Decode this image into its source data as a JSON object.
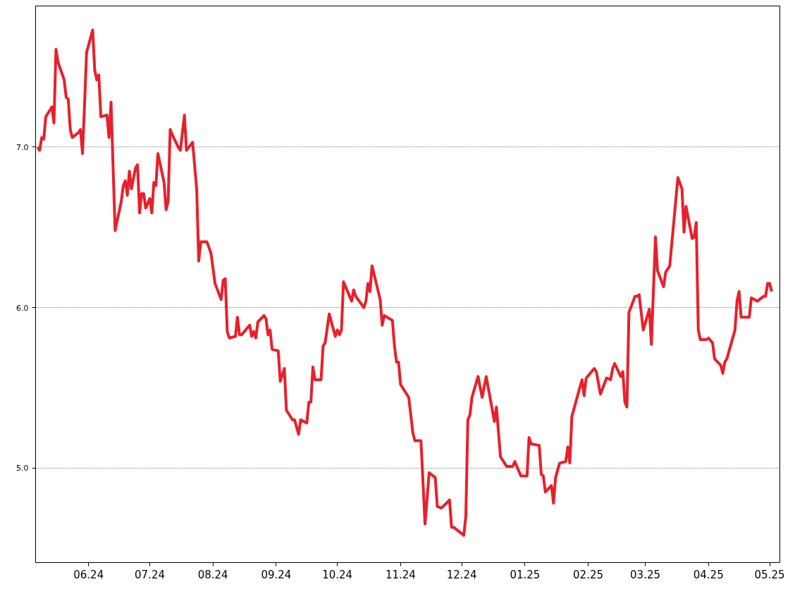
{
  "chart_data": {
    "type": "line",
    "x": [
      "2024-05-07",
      "2024-05-08",
      "2024-05-09",
      "2024-05-10",
      "2024-05-11",
      "2024-05-13",
      "2024-05-14",
      "2024-05-15",
      "2024-05-16",
      "2024-05-17",
      "2024-05-20",
      "2024-05-21",
      "2024-05-22",
      "2024-05-23",
      "2024-05-24",
      "2024-05-27",
      "2024-05-28",
      "2024-05-29",
      "2024-05-30",
      "2024-05-31",
      "2024-06-03",
      "2024-06-04",
      "2024-06-05",
      "2024-06-06",
      "2024-06-07",
      "2024-06-10",
      "2024-06-11",
      "2024-06-12",
      "2024-06-14",
      "2024-06-17",
      "2024-06-18",
      "2024-06-19",
      "2024-06-20",
      "2024-06-21",
      "2024-06-22",
      "2024-06-24",
      "2024-06-25",
      "2024-06-26",
      "2024-06-27",
      "2024-06-28",
      "2024-06-29",
      "2024-07-01",
      "2024-07-02",
      "2024-07-03",
      "2024-07-04",
      "2024-07-05",
      "2024-07-08",
      "2024-07-09",
      "2024-07-10",
      "2024-07-11",
      "2024-07-13",
      "2024-07-15",
      "2024-07-16",
      "2024-07-18",
      "2024-07-19",
      "2024-07-22",
      "2024-07-24",
      "2024-07-25",
      "2024-07-26",
      "2024-07-29",
      "2024-07-31",
      "2024-08-02",
      "2024-08-05",
      "2024-08-06",
      "2024-08-07",
      "2024-08-08",
      "2024-08-09",
      "2024-08-12",
      "2024-08-13",
      "2024-08-14",
      "2024-08-15",
      "2024-08-19",
      "2024-08-20",
      "2024-08-21",
      "2024-08-22",
      "2024-08-23",
      "2024-08-26",
      "2024-08-27",
      "2024-08-28",
      "2024-08-29",
      "2024-08-30",
      "2024-09-02",
      "2024-09-03",
      "2024-09-05",
      "2024-09-06",
      "2024-09-09",
      "2024-09-10",
      "2024-09-12",
      "2024-09-13",
      "2024-09-16",
      "2024-09-17",
      "2024-09-18",
      "2024-09-19",
      "2024-09-20",
      "2024-09-23",
      "2024-09-24",
      "2024-09-25",
      "2024-09-27",
      "2024-09-30",
      "2024-10-01",
      "2024-10-02",
      "2024-10-03",
      "2024-10-04",
      "2024-10-08",
      "2024-10-09",
      "2024-10-10",
      "2024-10-14",
      "2024-10-15",
      "2024-10-16",
      "2024-10-17",
      "2024-10-18",
      "2024-10-22",
      "2024-10-23",
      "2024-10-24",
      "2024-10-28",
      "2024-10-29",
      "2024-10-30",
      "2024-10-31",
      "2024-11-01",
      "2024-11-05",
      "2024-11-07",
      "2024-11-08",
      "2024-11-11",
      "2024-11-13",
      "2024-11-15",
      "2024-11-18",
      "2024-11-19",
      "2024-11-21",
      "2024-11-25",
      "2024-11-26",
      "2024-11-27",
      "2024-11-28",
      "2024-12-02",
      "2024-12-03",
      "2024-12-04",
      "2024-12-05",
      "2024-12-06",
      "2024-12-09",
      "2024-12-11",
      "2024-12-13",
      "2024-12-17",
      "2024-12-18",
      "2024-12-20",
      "2024-12-23",
      "2024-12-26",
      "2024-12-27",
      "2024-12-30",
      "2025-01-02",
      "2025-01-03",
      "2025-01-04",
      "2025-01-08",
      "2025-01-09",
      "2025-01-10",
      "2025-01-11",
      "2025-01-14",
      "2025-01-15",
      "2025-01-16",
      "2025-01-18",
      "2025-01-21",
      "2025-01-22",
      "2025-01-23",
      "2025-01-24",
      "2025-01-27",
      "2025-01-29",
      "2025-01-30",
      "2025-01-31",
      "2025-02-04",
      "2025-02-05",
      "2025-02-07",
      "2025-02-10",
      "2025-02-12",
      "2025-02-13",
      "2025-02-14",
      "2025-02-17",
      "2025-02-18",
      "2025-02-19",
      "2025-02-20",
      "2025-02-21",
      "2025-02-24",
      "2025-02-25",
      "2025-02-26",
      "2025-02-28",
      "2025-03-03",
      "2025-03-04",
      "2025-03-06",
      "2025-03-07",
      "2025-03-10",
      "2025-03-11",
      "2025-03-12",
      "2025-03-13",
      "2025-03-17",
      "2025-03-19",
      "2025-03-20",
      "2025-03-21",
      "2025-03-24",
      "2025-03-25",
      "2025-03-26",
      "2025-03-27",
      "2025-03-28",
      "2025-03-31",
      "2025-04-01",
      "2025-04-03",
      "2025-04-04",
      "2025-04-07",
      "2025-04-08",
      "2025-04-09",
      "2025-04-10",
      "2025-04-14",
      "2025-04-15",
      "2025-04-16",
      "2025-04-17",
      "2025-04-21",
      "2025-04-22",
      "2025-04-25",
      "2025-04-28",
      "2025-04-29",
      "2025-04-30",
      "2025-05-01",
      "2025-05-02"
    ],
    "series": [
      {
        "color": "#e8202a",
        "values": [
          7.0,
          6.98,
          7.06,
          7.05,
          7.19,
          7.23,
          7.25,
          7.15,
          7.61,
          7.53,
          7.42,
          7.31,
          7.3,
          7.11,
          7.06,
          7.09,
          7.11,
          6.96,
          7.26,
          7.59,
          7.73,
          7.48,
          7.42,
          7.45,
          7.19,
          7.2,
          7.06,
          7.28,
          6.48,
          6.66,
          6.76,
          6.79,
          6.7,
          6.85,
          6.74,
          6.87,
          6.89,
          6.59,
          6.71,
          6.71,
          6.62,
          6.68,
          6.59,
          6.78,
          6.76,
          6.96,
          6.78,
          6.61,
          6.66,
          7.11,
          7.05,
          7.0,
          6.98,
          7.2,
          6.98,
          7.03,
          6.74,
          6.29,
          6.41,
          6.41,
          6.34,
          6.15,
          6.05,
          6.17,
          6.18,
          5.85,
          5.81,
          5.82,
          5.94,
          5.83,
          5.83,
          5.89,
          5.82,
          5.85,
          5.81,
          5.91,
          5.95,
          5.93,
          5.83,
          5.86,
          5.74,
          5.73,
          5.54,
          5.62,
          5.36,
          5.3,
          5.3,
          5.21,
          5.3,
          5.28,
          5.41,
          5.41,
          5.63,
          5.55,
          5.55,
          5.76,
          5.78,
          5.96,
          5.82,
          5.86,
          5.83,
          5.86,
          6.16,
          6.04,
          6.11,
          6.07,
          6.0,
          6.04,
          6.15,
          6.1,
          6.26,
          6.05,
          5.89,
          5.95,
          5.92,
          5.76,
          5.66,
          5.66,
          5.52,
          5.44,
          5.22,
          5.17,
          5.17,
          4.65,
          4.97,
          4.94,
          4.76,
          4.75,
          4.8,
          4.63,
          4.63,
          4.62,
          4.58,
          4.7,
          5.3,
          5.33,
          5.44,
          5.57,
          5.44,
          5.57,
          5.29,
          5.38,
          5.07,
          5.01,
          5.01,
          5.04,
          4.95,
          4.95,
          5.19,
          5.15,
          5.14,
          4.96,
          4.95,
          4.85,
          4.89,
          4.78,
          4.94,
          5.03,
          5.04,
          5.13,
          5.03,
          5.32,
          5.46,
          5.55,
          5.45,
          5.56,
          5.62,
          5.6,
          5.46,
          5.56,
          5.55,
          5.62,
          5.65,
          5.57,
          5.6,
          5.41,
          5.38,
          5.97,
          6.07,
          6.07,
          6.08,
          5.86,
          5.99,
          5.77,
          6.44,
          6.23,
          6.13,
          6.22,
          6.24,
          6.26,
          6.81,
          6.74,
          6.47,
          6.63,
          6.43,
          6.44,
          6.53,
          5.86,
          5.8,
          5.8,
          5.81,
          5.78,
          5.68,
          5.64,
          5.59,
          5.66,
          5.68,
          5.86,
          6.04,
          6.1,
          5.94,
          5.94,
          6.06,
          6.04,
          6.07,
          6.07,
          6.15,
          6.15,
          6.1
        ]
      }
    ],
    "xlim": [
      "2024-05-06",
      "2025-05-06"
    ],
    "xticks": [
      {
        "value": "2024-06-01",
        "label": "06.24"
      },
      {
        "value": "2024-07-01",
        "label": "07.24"
      },
      {
        "value": "2024-08-01",
        "label": "08.24"
      },
      {
        "value": "2024-09-01",
        "label": "09.24"
      },
      {
        "value": "2024-10-01",
        "label": "10.24"
      },
      {
        "value": "2024-11-01",
        "label": "11.24"
      },
      {
        "value": "2024-12-01",
        "label": "12.24"
      },
      {
        "value": "2025-01-01",
        "label": "01.25"
      },
      {
        "value": "2025-02-01",
        "label": "02.25"
      },
      {
        "value": "2025-03-01",
        "label": "03.25"
      },
      {
        "value": "2025-04-01",
        "label": "04.25"
      },
      {
        "value": "2025-05-01",
        "label": "05.25"
      }
    ],
    "ylim": [
      4.41,
      7.88
    ],
    "yticks": [
      {
        "value": 5,
        "label": "5.0"
      },
      {
        "value": 6,
        "label": "6.0"
      },
      {
        "value": 7,
        "label": "7.0"
      }
    ],
    "grid": "y",
    "line_style": "solid",
    "marker": "none"
  }
}
